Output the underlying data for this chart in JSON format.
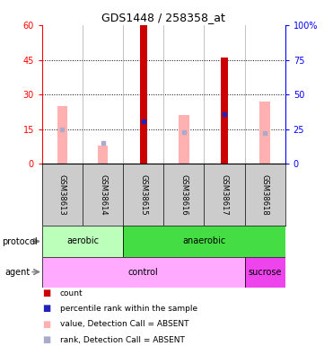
{
  "title": "GDS1448 / 258358_at",
  "samples": [
    "GSM38613",
    "GSM38614",
    "GSM38615",
    "GSM38616",
    "GSM38617",
    "GSM38618"
  ],
  "red_bar_heights": [
    0,
    0,
    60,
    0,
    46,
    0
  ],
  "pink_bar_heights": [
    25,
    8,
    0,
    21,
    0,
    27
  ],
  "blue_square_y": [
    null,
    null,
    31,
    null,
    36,
    null
  ],
  "light_blue_square_y": [
    25,
    15,
    null,
    23,
    null,
    22
  ],
  "left_ylim": [
    0,
    60
  ],
  "right_ylim": [
    0,
    100
  ],
  "left_yticks": [
    0,
    15,
    30,
    45,
    60
  ],
  "right_yticks": [
    0,
    25,
    50,
    75,
    100
  ],
  "right_yticklabels": [
    "0",
    "25",
    "50",
    "75",
    "100%"
  ],
  "bar_width": 0.25,
  "color_red": "#cc0000",
  "color_pink": "#ffb0b0",
  "color_blue": "#2222bb",
  "color_light_blue": "#aaaacc",
  "color_aerobic_light": "#bbffbb",
  "color_aerobic_dark": "#44dd44",
  "color_anaerobic": "#44dd44",
  "color_control": "#ffaaff",
  "color_sucrose": "#ee44ee",
  "color_sample_bg": "#cccccc",
  "bg_color": "#ffffff"
}
